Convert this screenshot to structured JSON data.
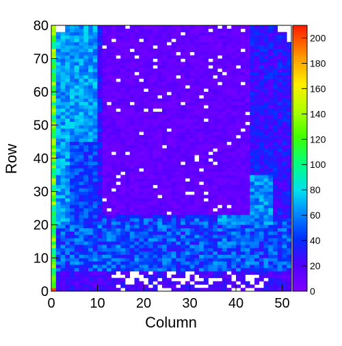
{
  "chart_data": {
    "type": "heatmap",
    "xlabel": "Column",
    "ylabel": "Row",
    "xlim": [
      0,
      52
    ],
    "ylim": [
      0,
      80
    ],
    "x_ticks": [
      0,
      10,
      20,
      30,
      40,
      50
    ],
    "y_ticks": [
      0,
      10,
      20,
      30,
      40,
      50,
      60,
      70,
      80
    ],
    "colorbar": {
      "range": [
        0,
        210
      ],
      "ticks": [
        0,
        20,
        40,
        60,
        80,
        100,
        120,
        140,
        160,
        180,
        200
      ]
    },
    "ncols": 52,
    "nrows": 80,
    "regions": {
      "left_band_cols": [
        0,
        10
      ],
      "left_band_rows": [
        20,
        80
      ],
      "left_band_value": 66,
      "left_band_inner_cols": [
        4,
        10
      ],
      "left_band_inner_rows": [
        20,
        45
      ],
      "left_band_inner_value": 45,
      "purple_block_cols": [
        11,
        43
      ],
      "purple_block_rows": [
        23,
        80
      ],
      "purple_block_value": 12,
      "lower_band_rows": [
        6,
        22
      ],
      "lower_band_value": 48,
      "bottom_strip_rows": [
        0,
        6
      ],
      "bottom_strip_value": 22,
      "right_band_cols": [
        36,
        48
      ],
      "right_band_rows": [
        20,
        35
      ],
      "right_band_value": 62,
      "first_col_value": 120,
      "corner_value": 160
    }
  }
}
